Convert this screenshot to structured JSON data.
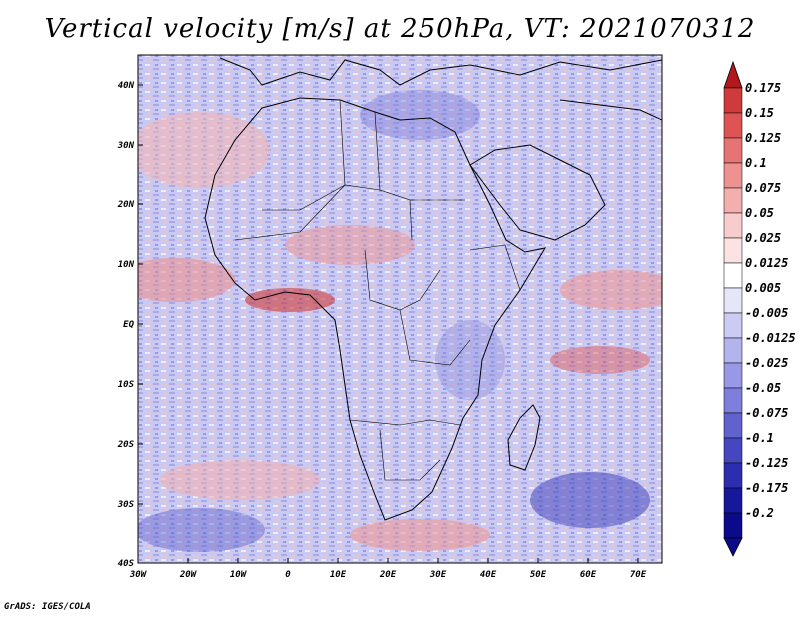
{
  "title": "Vertical velocity [m/s] at 250hPa, VT: 2021070312",
  "credit": "GrADS: IGES/COLA",
  "lat_labels": [
    "40N",
    "30N",
    "20N",
    "10N",
    "EQ",
    "10S",
    "20S",
    "30S",
    "40S"
  ],
  "lon_labels": [
    "30W",
    "20W",
    "10W",
    "0",
    "10E",
    "20E",
    "30E",
    "40E",
    "50E",
    "60E",
    "70E"
  ],
  "colorbar": {
    "levels": [
      "0.175",
      "0.15",
      "0.125",
      "0.1",
      "0.075",
      "0.05",
      "0.025",
      "0.0125",
      "0.005",
      "-0.005",
      "-0.0125",
      "-0.025",
      "-0.05",
      "-0.075",
      "-0.1",
      "-0.125",
      "-0.175",
      "-0.2"
    ],
    "colors": [
      "#b1191d",
      "#cf3a3a",
      "#de5454",
      "#e77474",
      "#ee9191",
      "#f3aeae",
      "#f8cccc",
      "#fbe3e3",
      "#ffffff",
      "#e6e6fb",
      "#cbcbf3",
      "#b3b3ee",
      "#9898e6",
      "#7e7edc",
      "#6262cf",
      "#4646c0",
      "#2d2db0",
      "#17179c",
      "#0a0a8a"
    ]
  }
}
